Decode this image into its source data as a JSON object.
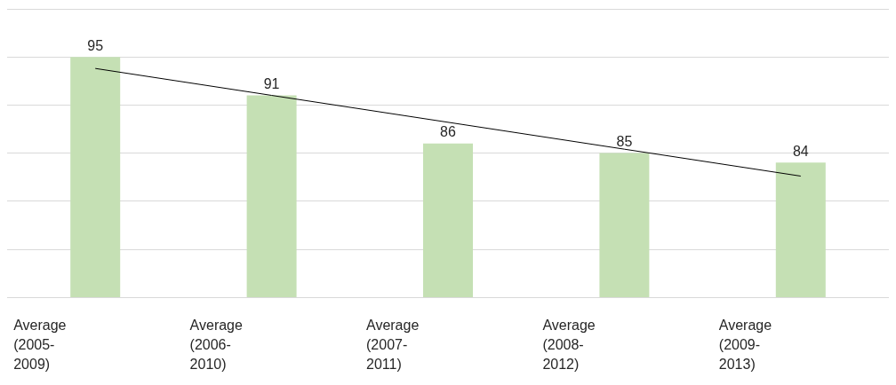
{
  "chart_data": {
    "type": "bar",
    "categories": [
      "Average (2005-2009)",
      "Average (2006-2010)",
      "Average (2007-2011)",
      "Average (2008-2012)",
      "Average (2009-2013)"
    ],
    "series": [
      {
        "color": "#c5e0b4",
        "values": [
          95,
          91,
          86,
          85,
          84
        ],
        "data_labels": true
      },
      {
        "type": "line",
        "color": "#000000",
        "values": [
          93.8,
          91,
          88.2,
          85.4,
          82.6
        ],
        "marker": "none"
      }
    ],
    "ylim": [
      70,
      100
    ],
    "yticks": [
      {
        "value": 70,
        "label": null
      },
      {
        "value": 75,
        "label": null
      },
      {
        "value": 80,
        "label": null
      },
      {
        "value": 85,
        "label": null
      },
      {
        "value": 90,
        "label": null
      },
      {
        "value": 95,
        "label": null
      },
      {
        "value": 100,
        "label": null
      }
    ],
    "grid": true,
    "tick_labels": "x"
  }
}
